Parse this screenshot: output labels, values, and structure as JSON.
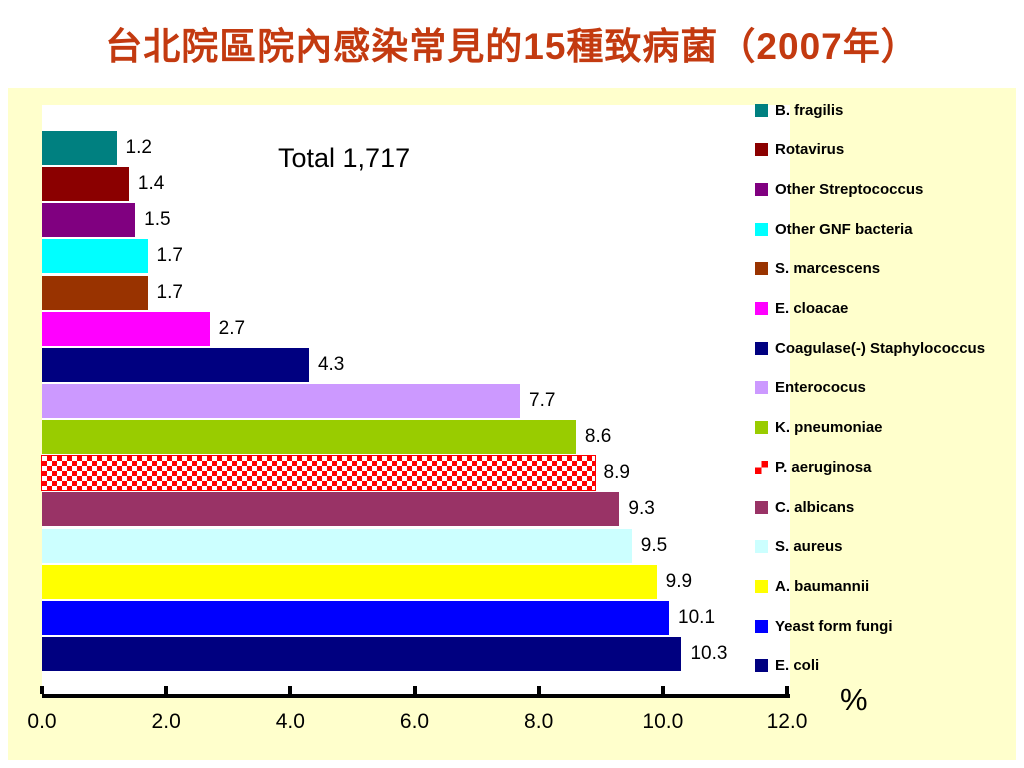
{
  "page": {
    "title": "台北院區院內感染常見的15種致病菌（2007年）",
    "title_color": "#C33A10"
  },
  "colors": {
    "chart_background": "#FFFFCC",
    "plot_background": "#FFFFFF",
    "axis_line": "#000000",
    "text": "#000000"
  },
  "chart_data": {
    "type": "bar",
    "orientation": "horizontal",
    "title": "台北院區院內感染常見的15種致病菌（2007年）",
    "annotation": "Total 1,717",
    "xlabel": "%",
    "xlim": [
      0,
      12
    ],
    "x_ticks": [
      {
        "value": 0,
        "label": "0.0"
      },
      {
        "value": 2,
        "label": "2.0"
      },
      {
        "value": 4,
        "label": "4.0"
      },
      {
        "value": 6,
        "label": "6.0"
      },
      {
        "value": 8,
        "label": "8.0"
      },
      {
        "value": 10,
        "label": "10.0"
      },
      {
        "value": 12,
        "label": "12.0"
      }
    ],
    "grid": false,
    "legend_position": "right",
    "series": [
      {
        "name": "B. fragilis",
        "value": 1.2,
        "label": "1.2",
        "color": "#008080"
      },
      {
        "name": "Rotavirus",
        "value": 1.4,
        "label": "1.4",
        "color": "#8B0000"
      },
      {
        "name": "Other Streptococcus",
        "value": 1.5,
        "label": "1.5",
        "color": "#800080"
      },
      {
        "name": "Other GNF bacteria",
        "value": 1.7,
        "label": "1.7",
        "color": "#00FFFF"
      },
      {
        "name": "S. marcescens",
        "value": 1.7,
        "label": "1.7",
        "color": "#993300"
      },
      {
        "name": "E. cloacae",
        "value": 2.7,
        "label": "2.7",
        "color": "#FF00FF"
      },
      {
        "name": "Coagulase(-) Staphylococcus",
        "value": 4.3,
        "label": "4.3",
        "color": "#000080"
      },
      {
        "name": "Enterococus",
        "value": 7.7,
        "label": "7.7",
        "color": "#CC99FF"
      },
      {
        "name": "K. pneumoniae",
        "value": 8.6,
        "label": "8.6",
        "color": "#99CC00"
      },
      {
        "name": "P. aeruginosa",
        "value": 8.9,
        "label": "8.9",
        "color": "#FF0000",
        "pattern": "checker",
        "pattern_color2": "#FFFFFF"
      },
      {
        "name": "C. albicans",
        "value": 9.3,
        "label": "9.3",
        "color": "#993366"
      },
      {
        "name": "S. aureus",
        "value": 9.5,
        "label": "9.5",
        "color": "#CCFFFF"
      },
      {
        "name": "A. baumannii",
        "value": 9.9,
        "label": "9.9",
        "color": "#FFFF00"
      },
      {
        "name": "Yeast form fungi",
        "value": 10.1,
        "label": "10.1",
        "color": "#0000FF"
      },
      {
        "name": "E. coli",
        "value": 10.3,
        "label": "10.3",
        "color": "#000080"
      }
    ]
  }
}
